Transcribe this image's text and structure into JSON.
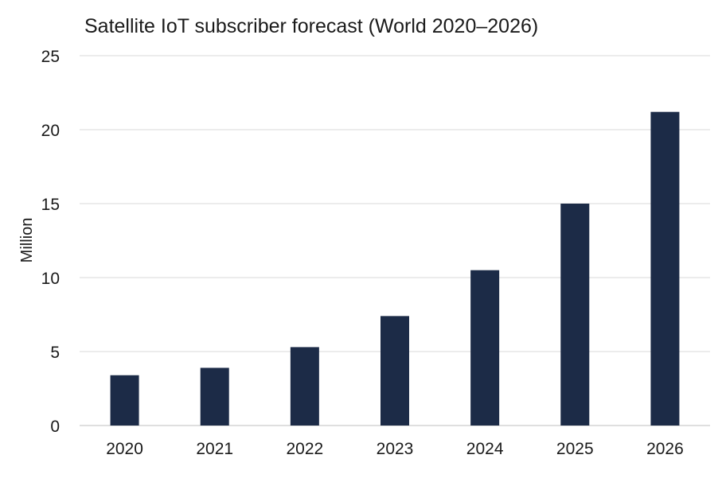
{
  "chart_data": {
    "type": "bar",
    "title": "Satellite IoT subscriber forecast (World 2020–2026)",
    "ylabel": "Million",
    "xlabel": "",
    "categories": [
      "2020",
      "2021",
      "2022",
      "2023",
      "2024",
      "2025",
      "2026"
    ],
    "series": [
      {
        "values": [
          3.4,
          3.9,
          5.3,
          7.4,
          10.5,
          15.0,
          21.2
        ]
      }
    ],
    "ylim": [
      0,
      25
    ],
    "yticks": [
      0,
      5,
      10,
      15,
      20,
      25
    ],
    "grid": true,
    "legend": "none",
    "bar_color": "#1c2b47"
  }
}
